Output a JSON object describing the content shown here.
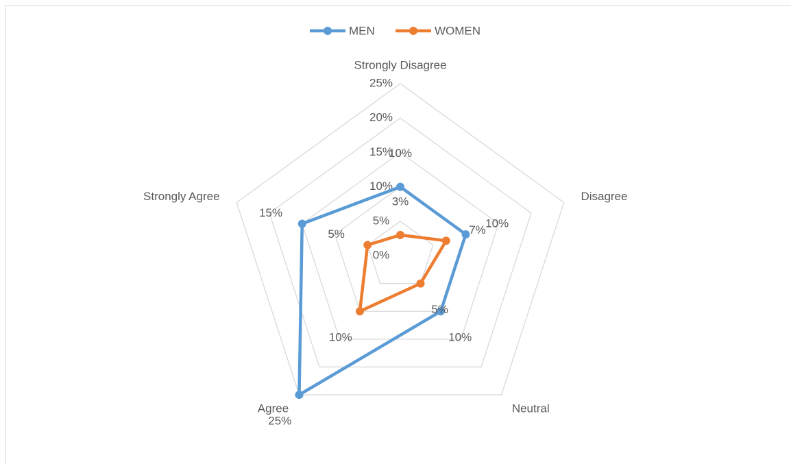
{
  "chart_data": {
    "type": "radar",
    "categories": [
      "Strongly Disagree",
      "Disagree",
      "Neutral",
      "Agree",
      "Strongly Agree"
    ],
    "series": [
      {
        "name": "MEN",
        "color": "#5b9bd5",
        "values": [
          10,
          10,
          10,
          25,
          15
        ],
        "value_labels": [
          "10%",
          "10%",
          "10%",
          "25%",
          "15%"
        ]
      },
      {
        "name": "WOMEN",
        "color": "#ed7d31",
        "values": [
          3,
          7,
          5,
          10,
          5
        ],
        "value_labels": [
          "3%",
          "7%",
          "5%",
          "10%",
          "5%"
        ]
      }
    ],
    "ylim": [
      0,
      25
    ],
    "yticks": [
      {
        "value": 0,
        "label": "0%"
      },
      {
        "value": 5,
        "label": "5%"
      },
      {
        "value": 10,
        "label": "10%"
      },
      {
        "value": 15,
        "label": "15%"
      },
      {
        "value": 20,
        "label": "20%"
      },
      {
        "value": 25,
        "label": "25%"
      }
    ],
    "grid": true,
    "legend": "top"
  }
}
